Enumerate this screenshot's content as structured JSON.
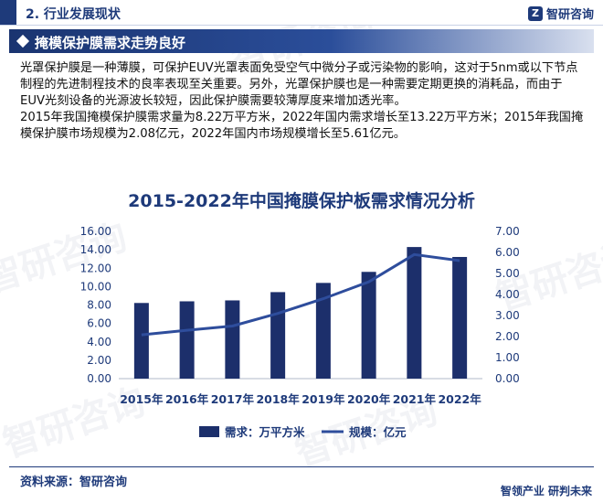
{
  "header": {
    "section": "2. 行业发展现状",
    "brand_name": "智研咨询",
    "brand_icon": "zhiyan-logo-icon"
  },
  "title_bar": {
    "title": "掩模保护膜需求走势良好"
  },
  "body": {
    "paragraphs": [
      "光罩保护膜是一种薄膜，可保护EUV光罩表面免受空气中微分子或污染物的影响，这对于5nm或以下节点制程的先进制程技术的良率表现至关重要。另外，光罩保护膜也是一种需要定期更换的消耗品，而由于 EUV光刻设备的光源波长较短，因此保护膜需要较薄厚度来增加透光率。",
      "2015年我国掩模保护膜需求量为8.22万平方米，2022年国内需求增长至13.22万平方米；2015年我国掩模保护膜市场规模为2.08亿元，2022年国内市场规模增长至5.61亿元。"
    ]
  },
  "chart_data": {
    "type": "bar",
    "title": "2015-2022年中国掩膜保护板需求情况分析",
    "categories": [
      "2015年",
      "2016年",
      "2017年",
      "2018年",
      "2019年",
      "2020年",
      "2021年",
      "2022年"
    ],
    "series": [
      {
        "name": "需求：万平方米",
        "type": "bar",
        "axis": "left",
        "values": [
          8.22,
          8.4,
          8.5,
          9.4,
          10.4,
          11.6,
          14.3,
          13.22
        ]
      },
      {
        "name": "规模：亿元",
        "type": "line",
        "axis": "right",
        "values": [
          2.08,
          2.3,
          2.5,
          3.1,
          3.8,
          4.6,
          5.9,
          5.61
        ]
      }
    ],
    "y_left": {
      "min": 0,
      "max": 16,
      "ticks": [
        "0.00",
        "2.00",
        "4.00",
        "6.00",
        "8.00",
        "10.00",
        "12.00",
        "14.00",
        "16.00"
      ]
    },
    "y_right": {
      "min": 0,
      "max": 7,
      "ticks": [
        "0.00",
        "1.00",
        "2.00",
        "3.00",
        "4.00",
        "5.00",
        "6.00",
        "7.00"
      ]
    },
    "grid": false,
    "legend_position": "bottom",
    "colors": {
      "bar": "#1c2f6b",
      "line": "#2e4d9c"
    }
  },
  "footer": {
    "source": "资料来源：智研咨询",
    "slogan": "智领产业 研判未来"
  },
  "watermark": {
    "text": "智研咨询",
    "url_text": "www.chyxx.com"
  }
}
